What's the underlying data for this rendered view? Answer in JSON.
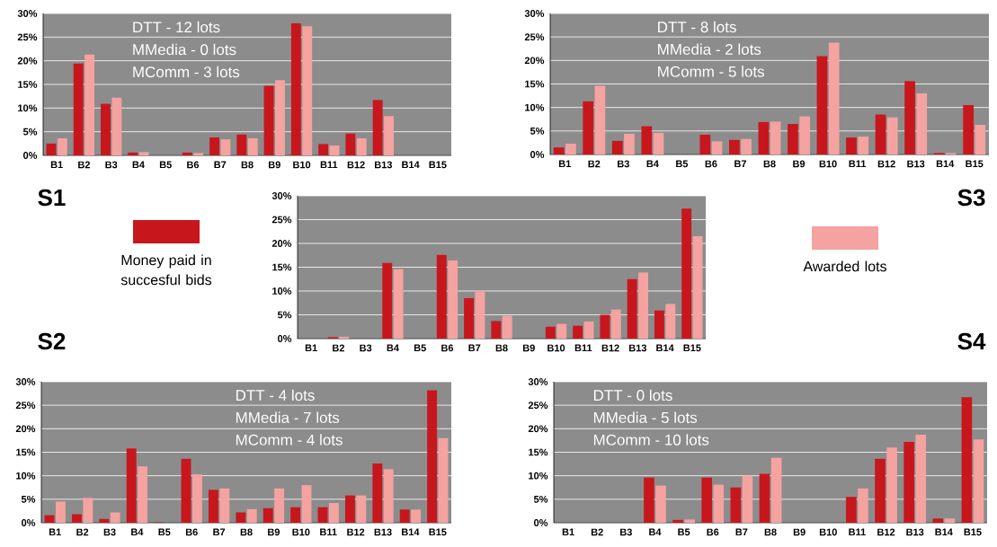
{
  "chart_data": [
    {
      "type": "bar",
      "title": "S1",
      "annotations": [
        "DTT - 12 lots",
        "MMedia - 0 lots",
        "MComm - 3 lots"
      ],
      "categories": [
        "B1",
        "B2",
        "B3",
        "B4",
        "B5",
        "B6",
        "B7",
        "B8",
        "B9",
        "B10",
        "B11",
        "B12",
        "B13",
        "B14",
        "B15"
      ],
      "series": [
        {
          "color": "#c8161d",
          "values": [
            2.5,
            19.4,
            10.9,
            0.6,
            0,
            0.6,
            3.8,
            4.4,
            14.7,
            27.9,
            2.4,
            4.6,
            11.7,
            0,
            0
          ]
        },
        {
          "color": "#f4a3a0",
          "values": [
            3.6,
            21.3,
            12.2,
            0.7,
            0,
            0.5,
            3.4,
            3.6,
            15.9,
            27.3,
            2.1,
            3.6,
            8.3,
            0,
            0
          ]
        }
      ],
      "ylim": [
        0,
        30
      ],
      "yticks": [
        {
          "value": 0,
          "label": "0%"
        },
        {
          "value": 5,
          "label": "5%"
        },
        {
          "value": 10,
          "label": "10%"
        },
        {
          "value": 15,
          "label": "15%"
        },
        {
          "value": 20,
          "label": "20%"
        },
        {
          "value": 25,
          "label": "25%"
        },
        {
          "value": 30,
          "label": "30%"
        }
      ],
      "grid": "y"
    },
    {
      "type": "bar",
      "title": "S3",
      "annotations": [
        "DTT - 8 lots",
        "MMedia - 2 lots",
        "MComm - 5 lots"
      ],
      "categories": [
        "B1",
        "B2",
        "B3",
        "B4",
        "B5",
        "B6",
        "B7",
        "B8",
        "B9",
        "B10",
        "B11",
        "B12",
        "B13",
        "B14",
        "B15"
      ],
      "series": [
        {
          "color": "#c8161d",
          "values": [
            1.5,
            11.3,
            2.9,
            6.0,
            0,
            4.2,
            3.1,
            6.9,
            6.5,
            20.9,
            3.6,
            8.5,
            15.6,
            0.3,
            10.5
          ]
        },
        {
          "color": "#f4a3a0",
          "values": [
            2.3,
            14.6,
            4.4,
            4.6,
            0,
            2.8,
            3.3,
            7.0,
            8.1,
            23.8,
            3.8,
            7.9,
            13.0,
            0.3,
            6.3
          ]
        }
      ],
      "ylim": [
        0,
        30
      ],
      "yticks": [
        {
          "value": 0,
          "label": "0%"
        },
        {
          "value": 5,
          "label": "5%"
        },
        {
          "value": 10,
          "label": "10%"
        },
        {
          "value": 15,
          "label": "15%"
        },
        {
          "value": 20,
          "label": "20%"
        },
        {
          "value": 25,
          "label": "25%"
        },
        {
          "value": 30,
          "label": "30%"
        }
      ],
      "grid": "y"
    },
    {
      "type": "bar",
      "categories": [
        "B1",
        "B2",
        "B3",
        "B4",
        "B5",
        "B6",
        "B7",
        "B8",
        "B9",
        "B10",
        "B11",
        "B12",
        "B13",
        "B14",
        "B15"
      ],
      "series": [
        {
          "name": "Money paid in succesful bids",
          "color": "#c8161d",
          "values": [
            0,
            0.3,
            0,
            15.9,
            0,
            17.6,
            8.5,
            3.7,
            0,
            2.5,
            2.7,
            5.0,
            12.5,
            5.9,
            27.3
          ]
        },
        {
          "name": "Awarded lots",
          "color": "#f4a3a0",
          "values": [
            0,
            0.4,
            0,
            14.6,
            0,
            16.4,
            10.0,
            4.8,
            0,
            3.1,
            3.6,
            6.1,
            13.9,
            7.3,
            21.5
          ]
        }
      ],
      "ylim": [
        0,
        30
      ],
      "yticks": [
        {
          "value": 0,
          "label": "0%"
        },
        {
          "value": 5,
          "label": "5%"
        },
        {
          "value": 10,
          "label": "10%"
        },
        {
          "value": 15,
          "label": "15%"
        },
        {
          "value": 20,
          "label": "20%"
        },
        {
          "value": 25,
          "label": "25%"
        },
        {
          "value": 30,
          "label": "30%"
        }
      ],
      "grid": "y",
      "legend": "left"
    },
    {
      "type": "bar",
      "title": "S2",
      "annotations": [
        "DTT - 4 lots",
        "MMedia - 7 lots",
        "MComm - 4 lots"
      ],
      "categories": [
        "B1",
        "B2",
        "B3",
        "B4",
        "B5",
        "B6",
        "B7",
        "B8",
        "B9",
        "B10",
        "B11",
        "B12",
        "B13",
        "B14",
        "B15"
      ],
      "series": [
        {
          "color": "#c8161d",
          "values": [
            1.6,
            1.8,
            0.8,
            15.8,
            0.1,
            13.6,
            7.0,
            2.2,
            3.1,
            3.3,
            3.3,
            5.8,
            12.6,
            2.8,
            28.2
          ]
        },
        {
          "color": "#f4a3a0",
          "values": [
            4.5,
            5.3,
            2.2,
            12.0,
            0,
            10.3,
            7.3,
            2.9,
            7.3,
            8.0,
            4.2,
            5.8,
            11.4,
            2.8,
            18.0
          ]
        }
      ],
      "ylim": [
        0,
        30
      ],
      "yticks": [
        {
          "value": 0,
          "label": "0%"
        },
        {
          "value": 5,
          "label": "5%"
        },
        {
          "value": 10,
          "label": "10%"
        },
        {
          "value": 15,
          "label": "15%"
        },
        {
          "value": 20,
          "label": "20%"
        },
        {
          "value": 25,
          "label": "25%"
        },
        {
          "value": 30,
          "label": "30%"
        }
      ],
      "grid": "y"
    },
    {
      "type": "bar",
      "title": "S4",
      "annotations": [
        "DTT - 0 lots",
        "MMedia - 5 lots",
        "MComm - 10 lots"
      ],
      "categories": [
        "B1",
        "B2",
        "B3",
        "B4",
        "B5",
        "B6",
        "B7",
        "B8",
        "B9",
        "B10",
        "B11",
        "B12",
        "B13",
        "B14",
        "B15"
      ],
      "series": [
        {
          "color": "#c8161d",
          "values": [
            0,
            0,
            0,
            9.6,
            0.6,
            9.6,
            7.5,
            10.4,
            0,
            0,
            5.5,
            13.6,
            17.2,
            0.9,
            26.7
          ]
        },
        {
          "color": "#f4a3a0",
          "values": [
            0,
            0,
            0,
            7.9,
            0.7,
            8.1,
            10.0,
            13.8,
            0,
            0,
            7.3,
            16.0,
            18.7,
            0.9,
            17.7
          ]
        }
      ],
      "ylim": [
        0,
        30
      ],
      "yticks": [
        {
          "value": 0,
          "label": "0%"
        },
        {
          "value": 5,
          "label": "5%"
        },
        {
          "value": 10,
          "label": "10%"
        },
        {
          "value": 15,
          "label": "15%"
        },
        {
          "value": 20,
          "label": "20%"
        },
        {
          "value": 25,
          "label": "25%"
        },
        {
          "value": 30,
          "label": "30%"
        }
      ],
      "grid": "y"
    }
  ]
}
